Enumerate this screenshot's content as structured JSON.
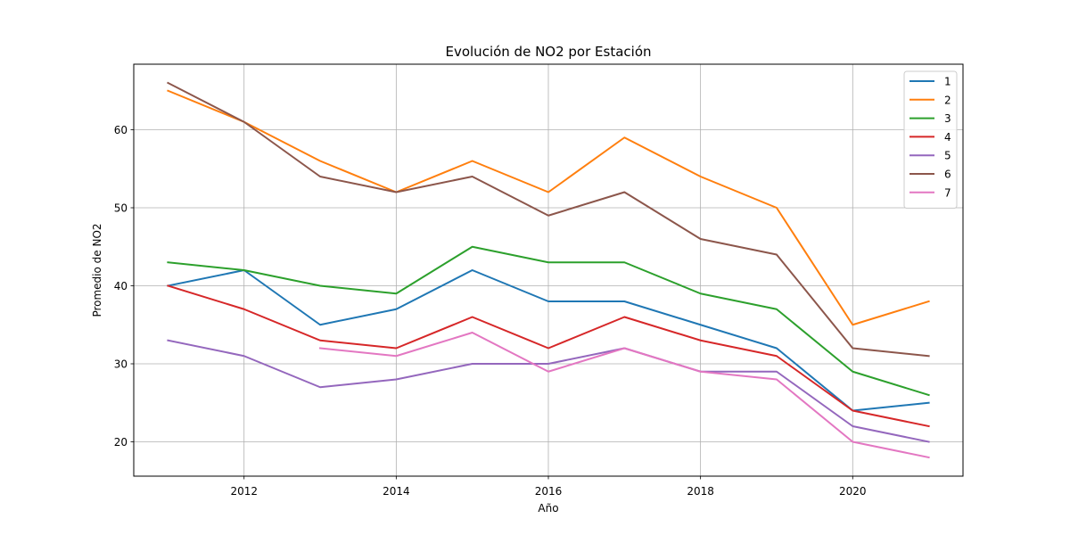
{
  "chart_data": {
    "type": "line",
    "title": "Evolución de NO2 por Estación",
    "xlabel": "Año",
    "ylabel": "Promedio de NO2",
    "x": [
      2011,
      2012,
      2013,
      2014,
      2015,
      2016,
      2017,
      2018,
      2019,
      2020,
      2021
    ],
    "xlim": [
      2010.55,
      2021.45
    ],
    "ylim": [
      15.6,
      68.4
    ],
    "xticks": [
      2012,
      2014,
      2016,
      2018,
      2020
    ],
    "yticks": [
      20,
      30,
      40,
      50,
      60
    ],
    "xtick_labels": [
      "2012",
      "2014",
      "2016",
      "2018",
      "2020"
    ],
    "ytick_labels": [
      "20",
      "30",
      "40",
      "50",
      "60"
    ],
    "grid": true,
    "legend_position": "top-right",
    "series": [
      {
        "name": "1",
        "color": "#1f77b4",
        "values": [
          40,
          42,
          35,
          37,
          42,
          38,
          38,
          35,
          32,
          24,
          25
        ]
      },
      {
        "name": "2",
        "color": "#ff7f0e",
        "values": [
          65,
          61,
          56,
          52,
          56,
          52,
          59,
          54,
          50,
          35,
          38
        ]
      },
      {
        "name": "3",
        "color": "#2ca02c",
        "values": [
          43,
          42,
          40,
          39,
          45,
          43,
          43,
          39,
          37,
          29,
          26
        ]
      },
      {
        "name": "4",
        "color": "#d62728",
        "values": [
          40,
          37,
          33,
          32,
          36,
          32,
          36,
          33,
          31,
          24,
          22
        ]
      },
      {
        "name": "5",
        "color": "#9467bd",
        "values": [
          33,
          31,
          27,
          28,
          30,
          30,
          32,
          29,
          29,
          22,
          20
        ]
      },
      {
        "name": "6",
        "color": "#8c564b",
        "values": [
          66,
          61,
          54,
          52,
          54,
          49,
          52,
          46,
          44,
          32,
          31
        ]
      },
      {
        "name": "7",
        "color": "#e377c2",
        "values": [
          null,
          null,
          32,
          31,
          34,
          29,
          32,
          29,
          28,
          20,
          18
        ]
      }
    ]
  }
}
